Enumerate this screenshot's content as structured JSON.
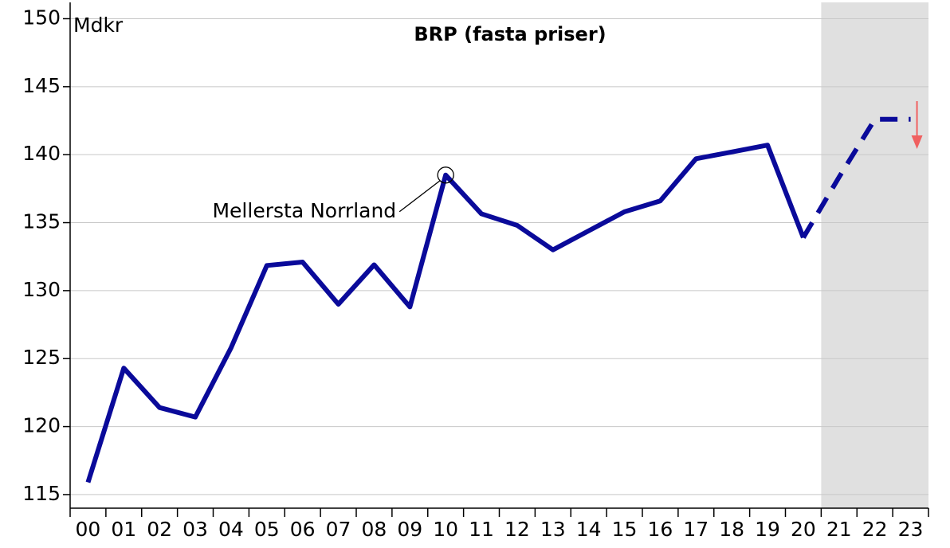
{
  "chart_data": {
    "type": "line",
    "title": "BRP (fasta priser)",
    "y_label": "Mdkr",
    "categories": [
      "00",
      "01",
      "02",
      "03",
      "04",
      "05",
      "06",
      "07",
      "08",
      "09",
      "10",
      "11",
      "12",
      "13",
      "14",
      "15",
      "16",
      "17",
      "18",
      "19",
      "20",
      "21",
      "22",
      "23"
    ],
    "series": [
      {
        "color": "#0a0a9a",
        "dashed": false,
        "values": [
          115.9,
          124.3,
          121.4,
          120.7,
          125.8,
          131.85,
          132.1,
          129.0,
          131.9,
          128.8,
          138.5,
          135.65,
          134.8,
          133.0,
          134.4,
          135.8,
          136.6,
          139.7,
          140.2,
          140.7,
          133.9,
          null,
          null,
          null
        ]
      },
      {
        "color": "#0a0a9a",
        "dashed": true,
        "values": [
          null,
          null,
          null,
          null,
          null,
          null,
          null,
          null,
          null,
          null,
          null,
          null,
          null,
          null,
          null,
          null,
          null,
          null,
          null,
          null,
          133.9,
          138.35,
          142.6,
          142.6
        ]
      }
    ],
    "ylim": [
      114,
      151.2
    ],
    "yticks": [
      115,
      120,
      125,
      130,
      135,
      140,
      145,
      150
    ],
    "grid": true,
    "forecast_region": {
      "start": "21",
      "end": "23",
      "color": "#e0e0e0"
    },
    "annotation": {
      "text": "Mellersta Norrland",
      "at": "10"
    }
  }
}
